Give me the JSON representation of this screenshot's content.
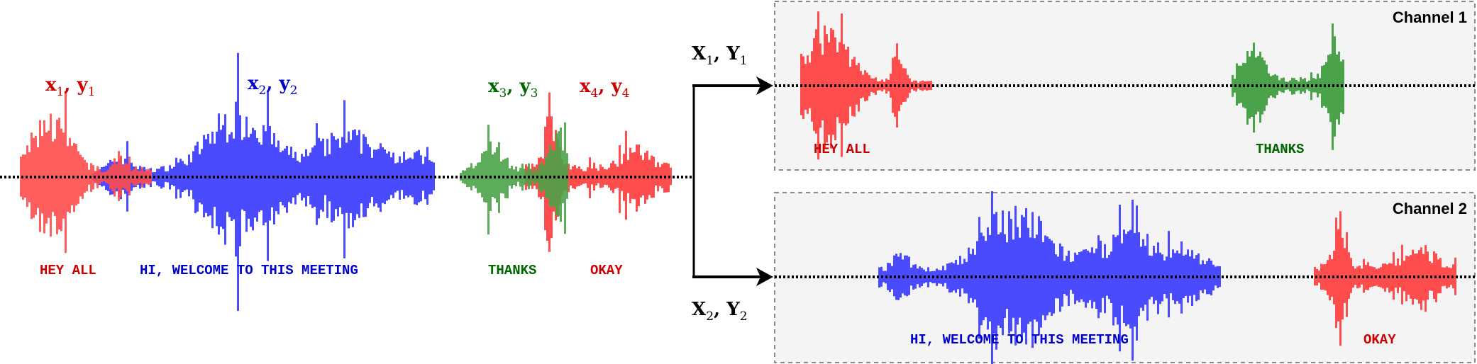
{
  "colors": {
    "red": "#ff4c4c",
    "red_text": "#cc0000",
    "blue": "#4a4aff",
    "blue_text": "#0000cc",
    "green": "#4aa34a",
    "green_text": "#006600",
    "channel_bg": "#f4f4f4",
    "channel_border": "#888888"
  },
  "mixed": {
    "segments": [
      {
        "label": {
          "a": "x",
          "as": "1",
          "b": "y",
          "bs": "1"
        },
        "transcript": "HEY ALL"
      },
      {
        "label": {
          "a": "x",
          "as": "2",
          "b": "y",
          "bs": "2"
        },
        "transcript": "HI, WELCOME TO THIS MEETING"
      },
      {
        "label": {
          "a": "x",
          "as": "3",
          "b": "y",
          "bs": "3"
        },
        "transcript": "THANKS"
      },
      {
        "label": {
          "a": "x",
          "as": "4",
          "b": "y",
          "bs": "4"
        },
        "transcript": "OKAY"
      }
    ]
  },
  "outputs": [
    {
      "a": "X",
      "as": "1",
      "b": "Y",
      "bs": "1"
    },
    {
      "a": "X",
      "as": "2",
      "b": "Y",
      "bs": "2"
    }
  ],
  "channels": [
    {
      "title": "Channel 1",
      "transcripts": [
        "HEY ALL",
        "THANKS"
      ]
    },
    {
      "title": "Channel 2",
      "transcripts": [
        "HI, WELCOME TO THIS MEETING",
        "OKAY"
      ]
    }
  ]
}
